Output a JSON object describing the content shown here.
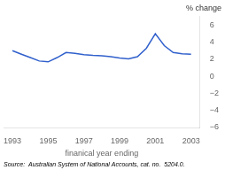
{
  "chart_data": {
    "type": "line",
    "x": [
      1993,
      1993.5,
      1994,
      1994.5,
      1995,
      1995.5,
      1996,
      1996.5,
      1997,
      1997.5,
      1998,
      1998.5,
      1999,
      1999.5,
      2000,
      2000.5,
      2001,
      2001.5,
      2002,
      2002.5,
      2003
    ],
    "values": [
      3.0,
      2.6,
      2.2,
      1.8,
      1.7,
      2.2,
      2.8,
      2.7,
      2.55,
      2.45,
      2.4,
      2.3,
      2.15,
      2.05,
      2.3,
      3.3,
      5.0,
      3.6,
      2.8,
      2.65,
      2.6
    ],
    "color": "#3060cc",
    "xlabel": "finanical year ending",
    "ylabel": "% change",
    "annotations": [
      "Source:  Australian System of National Accounts, cat. no.  5204.0."
    ],
    "xlim": [
      1992.5,
      2003.5
    ],
    "xticks": [
      1993,
      1995,
      1997,
      1999,
      2001,
      2003
    ],
    "ylim": [
      -6,
      7
    ],
    "yticks": [
      {
        "value": -6,
        "label": "−6"
      },
      {
        "value": -4,
        "label": "−4"
      },
      {
        "value": -2,
        "label": "−2"
      },
      0,
      2,
      4,
      6
    ],
    "grid": false
  }
}
